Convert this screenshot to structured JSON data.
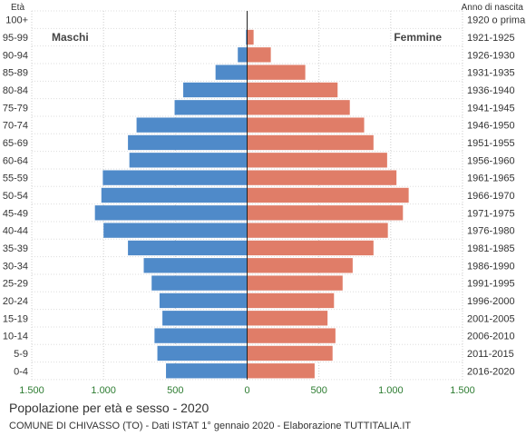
{
  "chart_data": {
    "type": "bar",
    "orientation": "horizontal",
    "title": "Popolazione per età e sesso - 2020",
    "subtitle": "COMUNE DI CHIVASSO (TO) - Dati ISTAT 1° gennaio 2020 - Elaborazione TUTTITALIA.IT",
    "left_axis_label": "Età",
    "right_axis_label": "Anno di nascita",
    "age_groups": [
      "100+",
      "95-99",
      "90-94",
      "85-89",
      "80-84",
      "75-79",
      "70-74",
      "65-69",
      "60-64",
      "55-59",
      "50-54",
      "45-49",
      "40-44",
      "35-39",
      "30-34",
      "25-29",
      "20-24",
      "15-19",
      "10-14",
      "5-9",
      "0-4"
    ],
    "birth_years": [
      "1920 o prima",
      "1921-1925",
      "1926-1930",
      "1931-1935",
      "1936-1940",
      "1941-1945",
      "1946-1950",
      "1951-1955",
      "1956-1960",
      "1961-1965",
      "1966-1970",
      "1971-1975",
      "1976-1980",
      "1981-1985",
      "1986-1990",
      "1991-1995",
      "1996-2000",
      "2001-2005",
      "2006-2010",
      "2011-2015",
      "2016-2020"
    ],
    "x_ticks": [
      -1500,
      -1000,
      -500,
      0,
      500,
      1000,
      1500
    ],
    "x_tick_labels": [
      "1.500",
      "1.000",
      "500",
      "0",
      "500",
      "1.000",
      "1.500"
    ],
    "xlim": [
      -1500,
      1500
    ],
    "grid": true,
    "series": [
      {
        "name": "Maschi",
        "color": "#4f8ac9",
        "values": [
          0,
          8,
          65,
          220,
          445,
          505,
          770,
          830,
          820,
          1005,
          1015,
          1060,
          1000,
          830,
          720,
          665,
          610,
          590,
          645,
          625,
          565
        ]
      },
      {
        "name": "Femmine",
        "color": "#e07d68",
        "values": [
          3,
          45,
          165,
          405,
          630,
          715,
          815,
          880,
          975,
          1040,
          1125,
          1085,
          980,
          880,
          735,
          665,
          605,
          560,
          615,
          595,
          470
        ]
      }
    ]
  }
}
